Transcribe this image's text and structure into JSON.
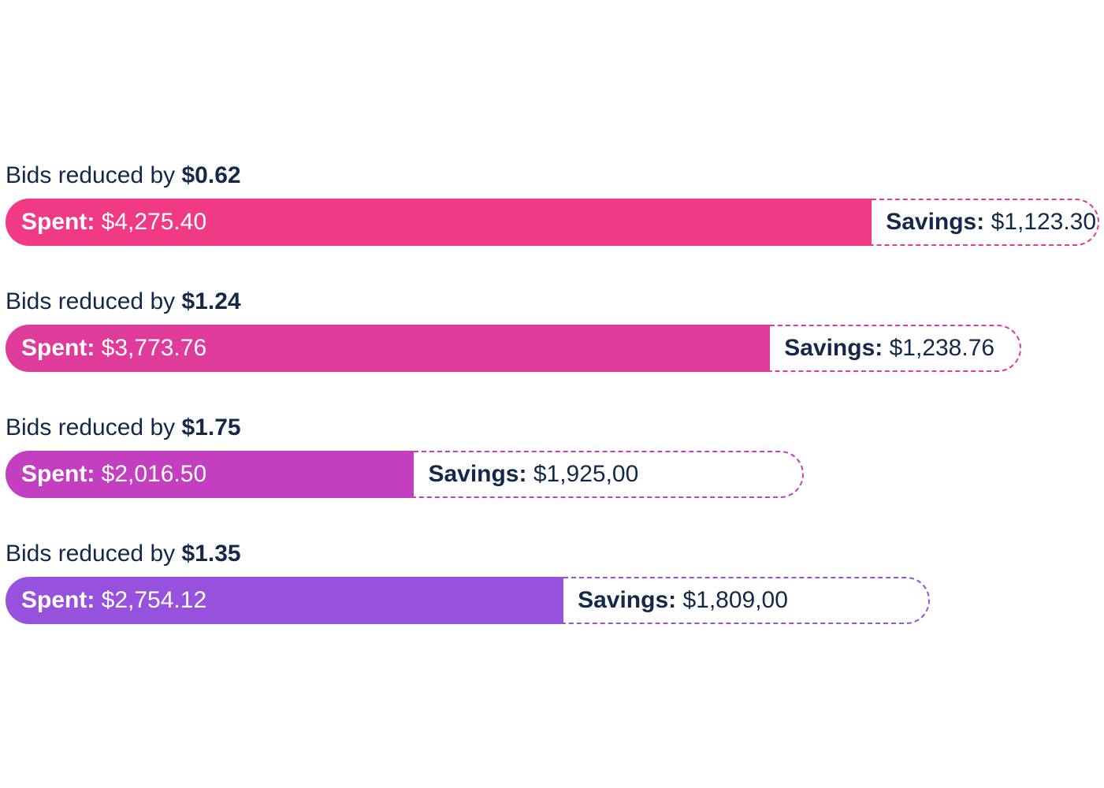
{
  "chart_data": {
    "type": "bar",
    "orientation": "horizontal",
    "stacked": true,
    "label_prefix": "Bids reduced by",
    "spent_label": "Spent:",
    "savings_label": "Savings:",
    "rows": [
      {
        "reduction": "$0.62",
        "spent": 4275.4,
        "spent_text": "$4,275.40",
        "savings": 1123.3,
        "savings_text": "$1,123.30",
        "color": "#f03a85",
        "border_color": "#e83a85"
      },
      {
        "reduction": "$1.24",
        "spent": 3773.76,
        "spent_text": "$3,773.76",
        "savings": 1238.76,
        "savings_text": "$1,238.76",
        "color": "#de3b9a",
        "border_color": "#de3b9a"
      },
      {
        "reduction": "$1.75",
        "spent": 2016.5,
        "spent_text": "$2,016.50",
        "savings": 1925.0,
        "savings_text": "$1,925,00",
        "color": "#c33fbf",
        "border_color": "#c33fbf"
      },
      {
        "reduction": "$1.35",
        "spent": 2754.12,
        "spent_text": "$2,754.12",
        "savings": 1809.0,
        "savings_text": "$1,809,00",
        "color": "#9652dc",
        "border_color": "#9652dc"
      }
    ]
  }
}
